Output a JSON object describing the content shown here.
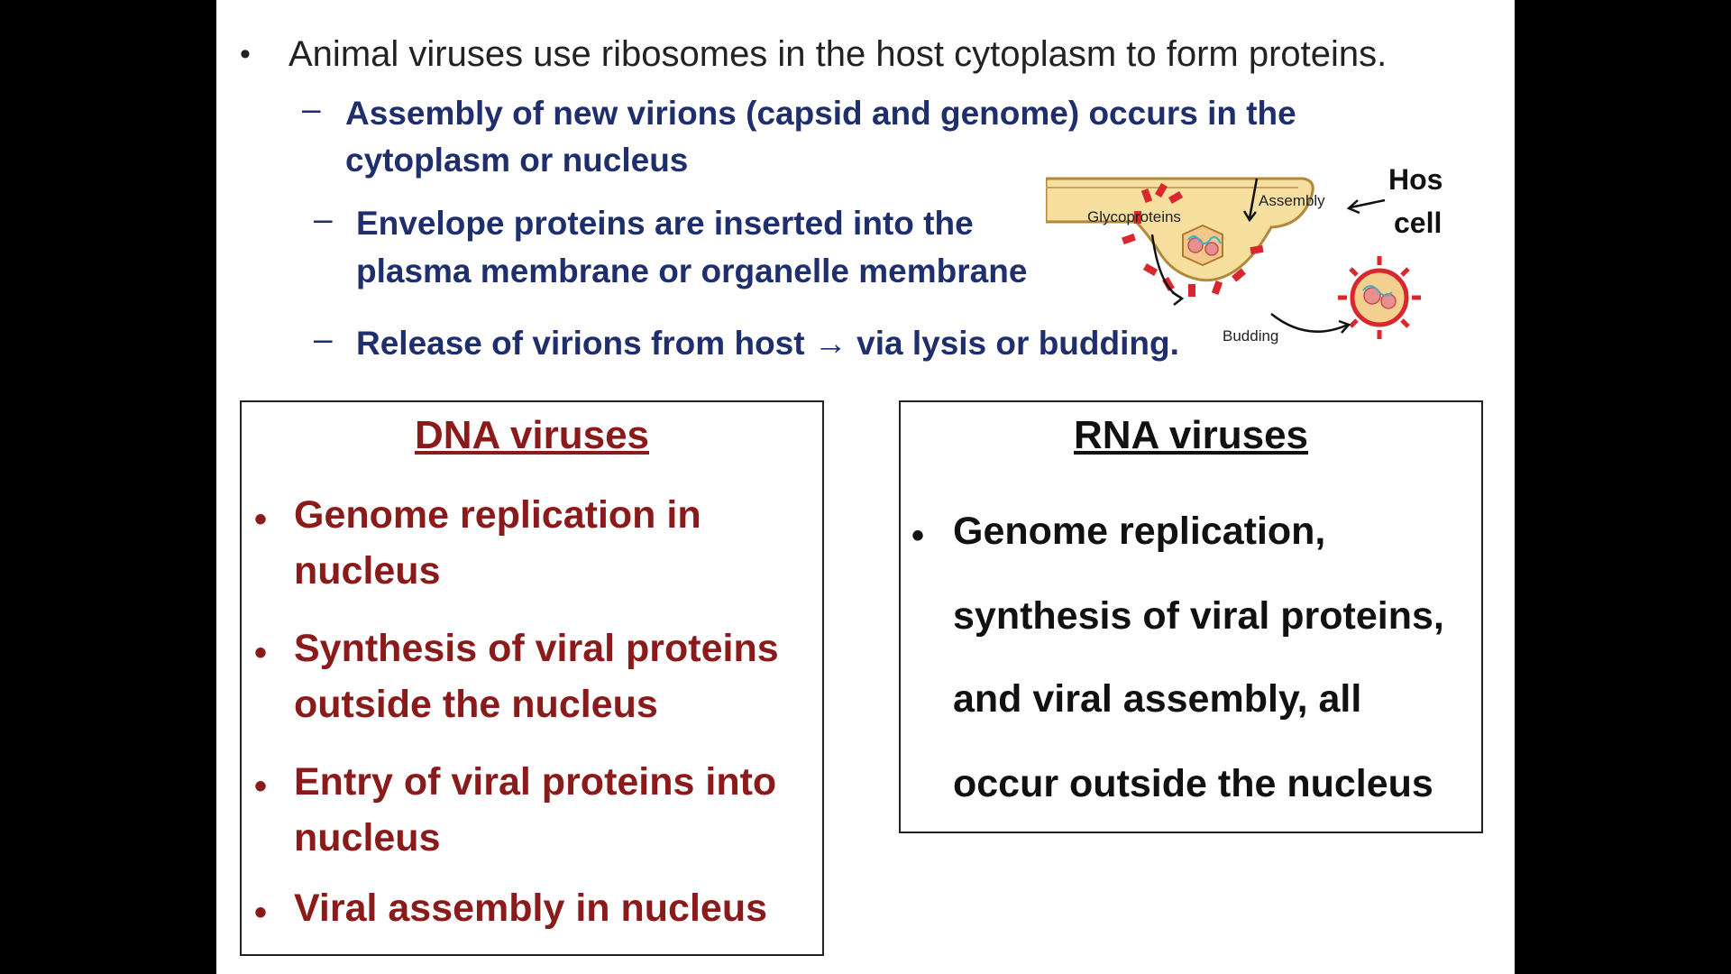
{
  "top": {
    "main_bullet": "Animal viruses use ribosomes in the host cytoplasm to form proteins.",
    "sub_bullets": [
      "Assembly of new virions (capsid and genome) occurs in the",
      "cytoplasm or nucleus",
      "Envelope proteins are inserted into the",
      "plasma membrane or organelle membrane",
      "Release of virions from host → via lysis or budding."
    ],
    "dash": "–",
    "bullet_dot": "•"
  },
  "diagram": {
    "label_glycoproteins": "Glycoproteins",
    "label_assembly": "Assembly",
    "label_budding": "Budding",
    "label_host_1": "Host",
    "label_host_2": "cell"
  },
  "dna_box": {
    "title": "DNA viruses",
    "items": [
      [
        "Genome replication in",
        "nucleus"
      ],
      [
        "Synthesis of viral proteins",
        "outside the nucleus"
      ],
      [
        "Entry of viral proteins into",
        "nucleus"
      ],
      [
        "Viral assembly in nucleus"
      ]
    ],
    "color": "#8b1a1a"
  },
  "rna_box": {
    "title": "RNA viruses",
    "lines": [
      "Genome replication,",
      "synthesis of viral proteins,",
      "and viral assembly, all",
      "occur outside the nucleus"
    ]
  }
}
